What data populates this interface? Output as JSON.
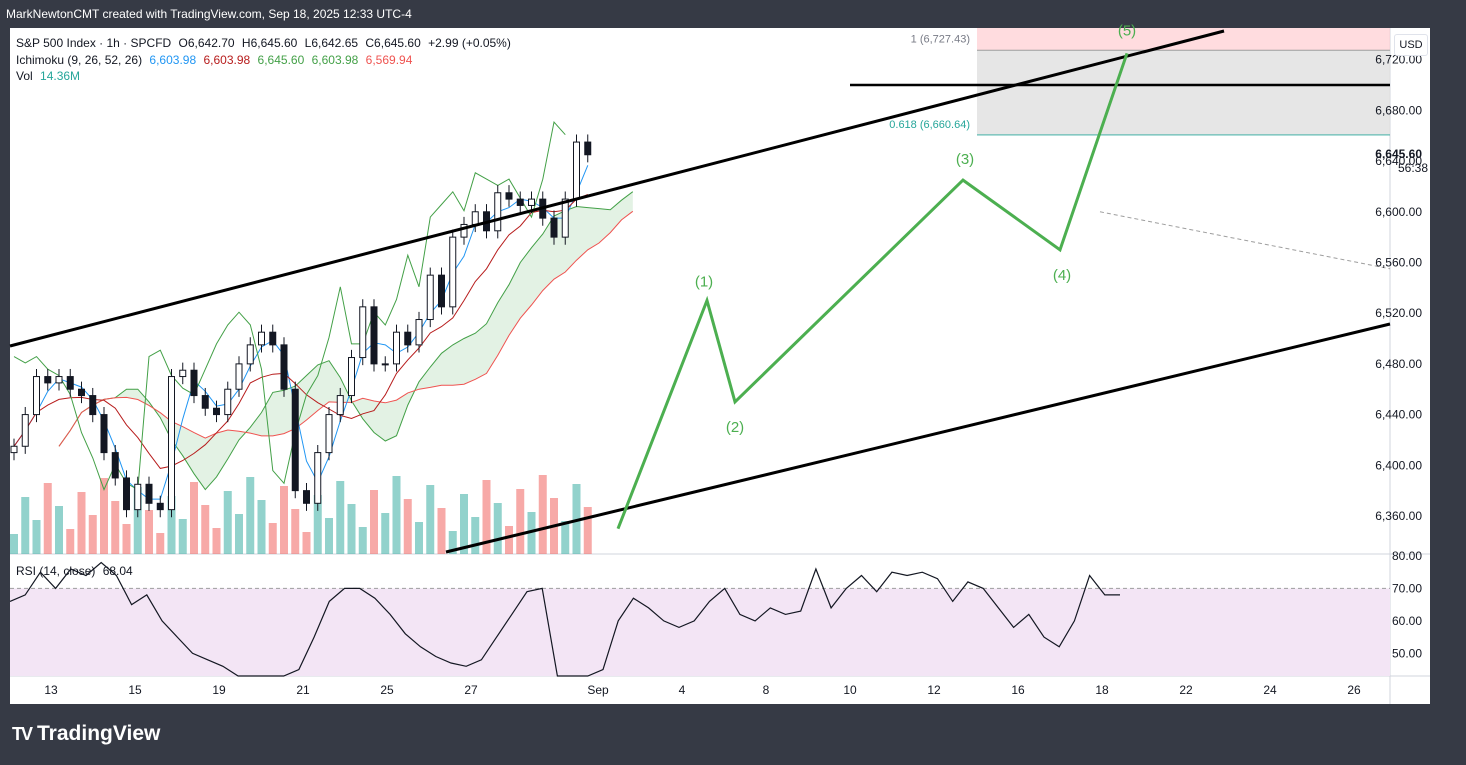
{
  "header": {
    "text": "MarkNewtonCMT created with TradingView.com, Sep 18, 2025 12:33 UTC-4"
  },
  "legend": {
    "symbol": "S&P 500 Index · 1h · SPCFD",
    "open": "O6,642.70",
    "high": "H6,645.60",
    "low": "L6,642.65",
    "close": "C6,645.60",
    "change": "+2.99 (+0.05%)",
    "ichimoku_label": "Ichimoku (9, 26, 52, 26)",
    "ichimoku_values": [
      "6,603.98",
      "6,603.98",
      "6,645.60",
      "6,603.98",
      "6,569.94"
    ],
    "vol_label": "Vol",
    "vol_value": "14.36M",
    "rsi_label": "RSI (14, close)",
    "rsi_value": "68.04"
  },
  "currency": "USD",
  "colors": {
    "up": "#26a69a",
    "down": "#ef5350",
    "tenkan": "#2196f3",
    "kijun": "#b71c1c",
    "chikou": "#43a047",
    "wave": "#4caf50",
    "rsi": "#131722",
    "rsi_band": "#f3e5f5"
  },
  "brand": "TradingView",
  "chart_data": {
    "type": "candlestick",
    "title": "S&P 500 Index · 1h · SPCFD",
    "ylim": [
      6330,
      6745
    ],
    "y_ticks": [
      "6,720.00",
      "6,680.00",
      "6,640.00",
      "6,600.00",
      "6,560.00",
      "6,520.00",
      "6,480.00",
      "6,440.00",
      "6,400.00",
      "6,360.00"
    ],
    "x_ticks": [
      "13",
      "15",
      "19",
      "21",
      "25",
      "27",
      "Sep",
      "4",
      "8",
      "10",
      "12",
      "16",
      "18",
      "22",
      "24",
      "26"
    ],
    "price_label": "6,645.60",
    "countdown": "56:38",
    "close_path": [
      {
        "date": "Aug 13",
        "close": 6415
      },
      {
        "date": "Aug 13",
        "close": 6440
      },
      {
        "date": "Aug 14",
        "close": 6470
      },
      {
        "date": "Aug 14",
        "close": 6465
      },
      {
        "date": "Aug 15",
        "close": 6470
      },
      {
        "date": "Aug 15",
        "close": 6460
      },
      {
        "date": "Aug 18",
        "close": 6455
      },
      {
        "date": "Aug 19",
        "close": 6440
      },
      {
        "date": "Aug 19",
        "close": 6410
      },
      {
        "date": "Aug 20",
        "close": 6390
      },
      {
        "date": "Aug 20",
        "close": 6365
      },
      {
        "date": "Aug 21",
        "close": 6385
      },
      {
        "date": "Aug 21",
        "close": 6370
      },
      {
        "date": "Aug 22",
        "close": 6365
      },
      {
        "date": "Aug 22",
        "close": 6470
      },
      {
        "date": "Aug 25",
        "close": 6475
      },
      {
        "date": "Aug 25",
        "close": 6455
      },
      {
        "date": "Aug 26",
        "close": 6445
      },
      {
        "date": "Aug 26",
        "close": 6440
      },
      {
        "date": "Aug 27",
        "close": 6460
      },
      {
        "date": "Aug 27",
        "close": 6480
      },
      {
        "date": "Aug 28",
        "close": 6495
      },
      {
        "date": "Aug 28",
        "close": 6505
      },
      {
        "date": "Aug 29",
        "close": 6495
      },
      {
        "date": "Aug 29",
        "close": 6460
      },
      {
        "date": "Sep 2",
        "close": 6380
      },
      {
        "date": "Sep 2",
        "close": 6370
      },
      {
        "date": "Sep 3",
        "close": 6410
      },
      {
        "date": "Sep 3",
        "close": 6440
      },
      {
        "date": "Sep 4",
        "close": 6455
      },
      {
        "date": "Sep 4",
        "close": 6485
      },
      {
        "date": "Sep 5",
        "close": 6525
      },
      {
        "date": "Sep 5",
        "close": 6480
      },
      {
        "date": "Sep 8",
        "close": 6480
      },
      {
        "date": "Sep 8",
        "close": 6505
      },
      {
        "date": "Sep 9",
        "close": 6495
      },
      {
        "date": "Sep 9",
        "close": 6515
      },
      {
        "date": "Sep 10",
        "close": 6550
      },
      {
        "date": "Sep 10",
        "close": 6525
      },
      {
        "date": "Sep 11",
        "close": 6580
      },
      {
        "date": "Sep 11",
        "close": 6590
      },
      {
        "date": "Sep 12",
        "close": 6600
      },
      {
        "date": "Sep 12",
        "close": 6585
      },
      {
        "date": "Sep 15",
        "close": 6615
      },
      {
        "date": "Sep 15",
        "close": 6610
      },
      {
        "date": "Sep 16",
        "close": 6605
      },
      {
        "date": "Sep 16",
        "close": 6610
      },
      {
        "date": "Sep 17",
        "close": 6595
      },
      {
        "date": "Sep 17",
        "close": 6580
      },
      {
        "date": "Sep 17",
        "close": 6610
      },
      {
        "date": "Sep 18",
        "close": 6655
      },
      {
        "date": "Sep 18",
        "close": 6645
      }
    ],
    "horizontal_levels": [
      {
        "label": "1 (6,727.43)",
        "value": 6727.43
      },
      {
        "label": "0.618 (6,660.64)",
        "value": 6660.64
      },
      {
        "label": "",
        "value": 6700
      }
    ],
    "wave_labels": [
      "(1)",
      "(2)",
      "(3)",
      "(4)",
      "(5)"
    ],
    "wave_path": [
      {
        "label": "start",
        "date": "Sep 2",
        "value": 6350
      },
      {
        "label": "(1)",
        "date": "Sep 5",
        "value": 6530
      },
      {
        "label": "(2)",
        "date": "Sep 5",
        "value": 6450
      },
      {
        "label": "(3)",
        "date": "Sep 12",
        "value": 6625
      },
      {
        "label": "(4)",
        "date": "Sep 17",
        "value": 6570
      },
      {
        "label": "(5)",
        "date": "Sep 19",
        "value": 6725
      }
    ],
    "rsi": {
      "title": "RSI (14, close)",
      "last": 68.04,
      "ylim": [
        43,
        80
      ],
      "y_ticks": [
        "80.00",
        "70.00",
        "60.00",
        "50.00"
      ],
      "band": [
        30,
        70
      ],
      "values": [
        66,
        68,
        75,
        70,
        76,
        74,
        78,
        74,
        65,
        68,
        60,
        55,
        50,
        48,
        46,
        42,
        40,
        38,
        40,
        45,
        55,
        66,
        70,
        70,
        67,
        62,
        56,
        52,
        49,
        47,
        46,
        48,
        55,
        62,
        69,
        70,
        40,
        30,
        30,
        45,
        60,
        67,
        64,
        60,
        58,
        60,
        66,
        70,
        62,
        60,
        64,
        62,
        63,
        76,
        64,
        70,
        74,
        69,
        75,
        74,
        75,
        73,
        66,
        72,
        70,
        64,
        58,
        62,
        55,
        52,
        60,
        74,
        68,
        68
      ]
    }
  }
}
